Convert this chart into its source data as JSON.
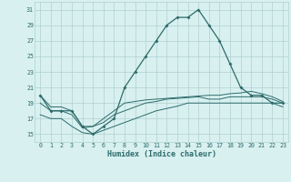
{
  "xlabel": "Humidex (Indice chaleur)",
  "x": [
    0,
    1,
    2,
    3,
    4,
    5,
    6,
    7,
    8,
    9,
    10,
    11,
    12,
    13,
    14,
    15,
    16,
    17,
    18,
    19,
    20,
    21,
    22,
    23
  ],
  "humidex": [
    20,
    18,
    18,
    18,
    16,
    15,
    16,
    17,
    21,
    23,
    25,
    27,
    29,
    30,
    30,
    31,
    29,
    27,
    24,
    21,
    20,
    20,
    19,
    19
  ],
  "tmin": [
    17.5,
    17,
    17,
    16,
    15.2,
    15,
    15.5,
    16,
    16.5,
    17,
    17.5,
    18,
    18.3,
    18.6,
    19,
    19,
    19,
    19,
    19,
    19,
    19,
    19,
    19,
    18.5
  ],
  "tmax": [
    20,
    18.5,
    18.5,
    18,
    16,
    16,
    17,
    18,
    19,
    19.2,
    19.4,
    19.5,
    19.6,
    19.7,
    19.8,
    19.9,
    20,
    20,
    20.2,
    20.3,
    20.5,
    20.2,
    19.8,
    19.2
  ],
  "tmean": [
    19,
    18,
    18,
    17.5,
    15.8,
    16,
    16.5,
    17.5,
    18,
    18.5,
    19,
    19.2,
    19.5,
    19.6,
    19.7,
    19.8,
    19.5,
    19.5,
    19.8,
    19.8,
    19.8,
    19.8,
    19.5,
    19
  ],
  "line_color": "#2e6b6b",
  "bg_color": "#d8f0f0",
  "grid_color": "#b0d0d0",
  "ylim": [
    14,
    32
  ],
  "yticks": [
    15,
    17,
    19,
    21,
    23,
    25,
    27,
    29,
    31
  ],
  "xlim": [
    -0.5,
    23.5
  ],
  "xticks": [
    0,
    1,
    2,
    3,
    4,
    5,
    6,
    7,
    8,
    9,
    10,
    11,
    12,
    13,
    14,
    15,
    16,
    17,
    18,
    19,
    20,
    21,
    22,
    23
  ]
}
